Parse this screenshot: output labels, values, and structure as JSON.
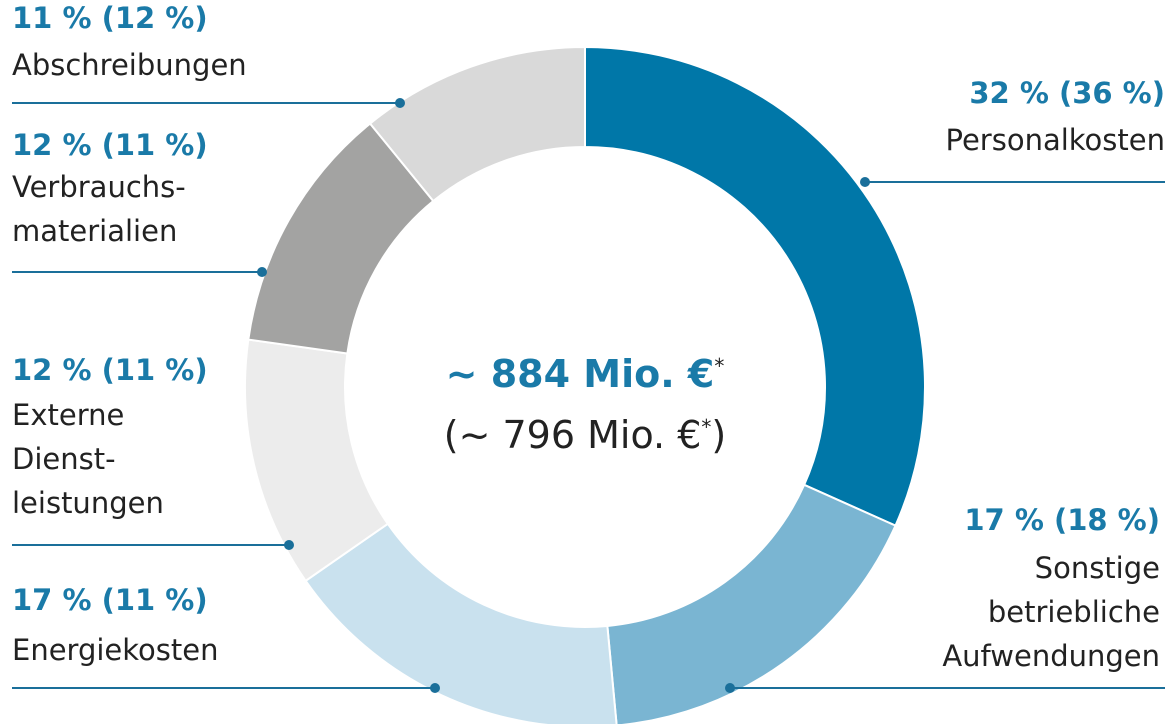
{
  "chart_data": {
    "type": "donut",
    "categories": [
      "Personalkosten",
      "Sonstige\nbetriebliche\nAufwendungen",
      "Energiekosten",
      "Externe\nDienst-\nleistungen",
      "Verbrauchs-\nmaterialien",
      "Abschreibungen"
    ],
    "values": [
      32,
      17,
      17,
      12,
      12,
      11
    ],
    "value_labels": [
      "32 % (36 %)",
      "17 % (18 %)",
      "17 % (11 %)",
      "12 % (11 %)",
      "12 % (11 %)",
      "11 % (12 %)"
    ],
    "colors": [
      "#0077a8",
      "#7ab5d2",
      "#c9e1ee",
      "#ececec",
      "#a3a3a2",
      "#d9d9d9"
    ],
    "center": {
      "total": "~ 884 Mio. €",
      "previous_open": "(~ 796 Mio. €",
      "previous_close": ")",
      "footnote_mark": "*"
    }
  }
}
